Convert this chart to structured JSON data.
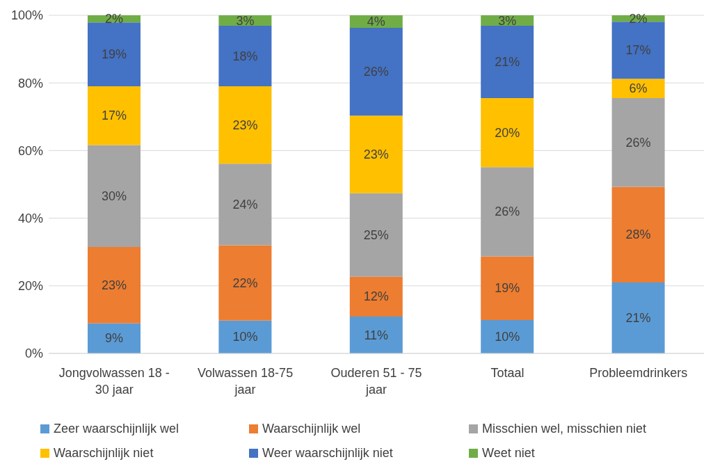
{
  "chart_data": {
    "type": "bar",
    "stacked": true,
    "categories": [
      "Jongvolwassen 18 - 30 jaar",
      "Volwassen 18-75 jaar",
      "Ouderen 51 - 75 jaar",
      "Totaal",
      "Probleemdrinkers"
    ],
    "series": [
      {
        "name": "Zeer waarschijnlijk wel",
        "color": "#5b9bd5",
        "values": [
          8.9,
          9.7,
          10.9,
          9.9,
          21.0
        ],
        "value_labels": [
          "9%",
          "10%",
          "11%",
          "10%",
          "21%"
        ]
      },
      {
        "name": "Waarschijnlijk wel",
        "color": "#ed7d31",
        "values": [
          22.6,
          22.3,
          11.8,
          18.8,
          28.3
        ],
        "value_labels": [
          "23%",
          "22%",
          "12%",
          "19%",
          "28%"
        ]
      },
      {
        "name": "Misschien wel, misschien niet",
        "color": "#a5a5a5",
        "values": [
          30.1,
          24.1,
          24.7,
          26.4,
          26.2
        ],
        "value_labels": [
          "30%",
          "24%",
          "25%",
          "26%",
          "26%"
        ]
      },
      {
        "name": "Waarschijnlijk niet",
        "color": "#ffc000",
        "values": [
          17.4,
          22.9,
          22.9,
          20.4,
          5.7
        ],
        "value_labels": [
          "17%",
          "23%",
          "23%",
          "20%",
          "6%"
        ]
      },
      {
        "name": "Weer waarschijnlijk niet",
        "color": "#4472c4",
        "values": [
          18.9,
          17.9,
          26.0,
          21.4,
          16.9
        ],
        "value_labels": [
          "19%",
          "18%",
          "26%",
          "21%",
          "17%"
        ]
      },
      {
        "name": "Weet niet",
        "color": "#70ad47",
        "values": [
          2.1,
          3.1,
          3.7,
          3.1,
          1.9
        ],
        "value_labels": [
          "2%",
          "3%",
          "4%",
          "3%",
          "2%"
        ]
      }
    ],
    "ylim": [
      0,
      100
    ],
    "yticks": [
      {
        "value": 0,
        "label": "0%"
      },
      {
        "value": 20,
        "label": "20%"
      },
      {
        "value": 40,
        "label": "40%"
      },
      {
        "value": 60,
        "label": "60%"
      },
      {
        "value": 80,
        "label": "80%"
      },
      {
        "value": 100,
        "label": "100%"
      }
    ],
    "grid": "y",
    "legend": "bottom"
  }
}
